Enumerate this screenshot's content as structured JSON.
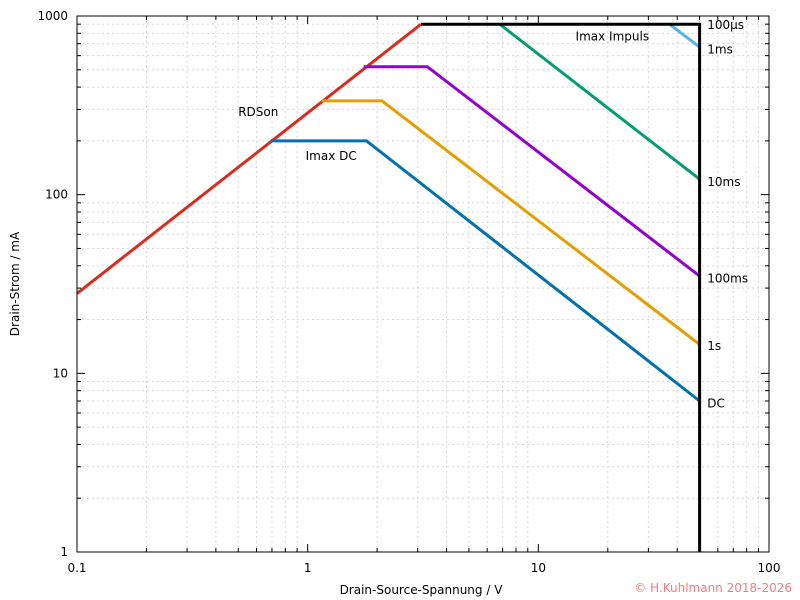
{
  "chart_data": {
    "type": "line",
    "title": "",
    "xlabel": "Drain-Source-Spannung / V",
    "ylabel": "Drain-Strom / mA",
    "xscale": "log",
    "yscale": "log",
    "xlim": [
      0.1,
      100
    ],
    "ylim": [
      1,
      1000
    ],
    "grid": true,
    "x_ticks": [
      {
        "value": 0.1,
        "label": "0.1"
      },
      {
        "value": 1,
        "label": "1"
      },
      {
        "value": 10,
        "label": "10"
      },
      {
        "value": 100,
        "label": "100"
      }
    ],
    "y_ticks": [
      {
        "value": 1,
        "label": "1"
      },
      {
        "value": 10,
        "label": "10"
      },
      {
        "value": 100,
        "label": "100"
      },
      {
        "value": 1000,
        "label": "1000"
      }
    ],
    "series": [
      {
        "name": "RDSon",
        "color": "#dd2a1e",
        "points": [
          [
            0.1,
            28
          ],
          [
            3.1,
            900
          ]
        ]
      },
      {
        "name": "DC",
        "color": "#0072b2",
        "points": [
          [
            0.69,
            200
          ],
          [
            1.8,
            200
          ],
          [
            50,
            7
          ]
        ]
      },
      {
        "name": "1s",
        "color": "#e69f00",
        "points": [
          [
            1.15,
            335
          ],
          [
            2.1,
            335
          ],
          [
            50,
            14.5
          ]
        ]
      },
      {
        "name": "100ms",
        "color": "#9400d3",
        "points": [
          [
            1.75,
            520
          ],
          [
            3.3,
            520
          ],
          [
            50,
            35
          ]
        ]
      },
      {
        "name": "10ms",
        "color": "#009e73",
        "points": [
          [
            6.8,
            900
          ],
          [
            50,
            122
          ]
        ]
      },
      {
        "name": "1ms",
        "color": "#56b4e9",
        "points": [
          [
            37,
            900
          ],
          [
            50,
            670
          ]
        ]
      },
      {
        "name": "100µs",
        "color": "#000000",
        "points": [
          [
            3.1,
            900
          ],
          [
            50,
            900
          ],
          [
            50,
            1
          ]
        ]
      }
    ],
    "annotations": [
      {
        "text": "RDSon",
        "x": 0.5,
        "y": 290
      },
      {
        "text": "Imax DC",
        "x": 0.98,
        "y": 165
      },
      {
        "text": "Imax Impuls",
        "x": 14.5,
        "y": 770
      },
      {
        "text": "100µs",
        "x": 54,
        "y": 890
      },
      {
        "text": "1ms",
        "x": 54,
        "y": 650
      },
      {
        "text": "10ms",
        "x": 54,
        "y": 118
      },
      {
        "text": "100ms",
        "x": 54,
        "y": 34
      },
      {
        "text": "1s",
        "x": 54,
        "y": 14.2
      },
      {
        "text": "DC",
        "x": 54,
        "y": 6.8
      }
    ],
    "copyright": "© H.Kuhlmann 2018-2026",
    "copyright_color": "#f08080"
  }
}
